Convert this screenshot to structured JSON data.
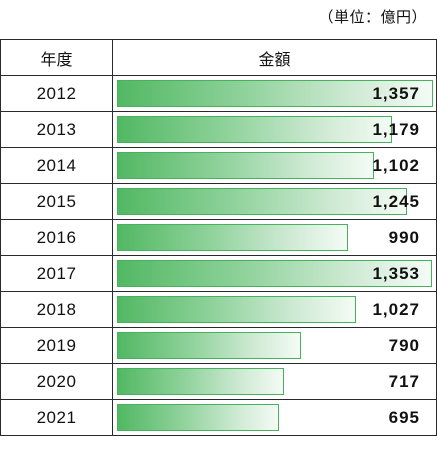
{
  "unit_label": "（単位：億円）",
  "chart_data": {
    "type": "bar",
    "orientation": "horizontal",
    "columns": [
      "年度",
      "金額"
    ],
    "categories": [
      "2012",
      "2013",
      "2014",
      "2015",
      "2016",
      "2017",
      "2018",
      "2019",
      "2020",
      "2021"
    ],
    "values": [
      1357,
      1179,
      1102,
      1245,
      990,
      1353,
      1027,
      790,
      717,
      695
    ],
    "value_labels": [
      "1,357",
      "1,179",
      "1,102",
      "1,245",
      "990",
      "1,353",
      "1,027",
      "790",
      "717",
      "695"
    ],
    "xlim": [
      0,
      1357
    ],
    "bar_color": "#52b863",
    "grid": false
  }
}
